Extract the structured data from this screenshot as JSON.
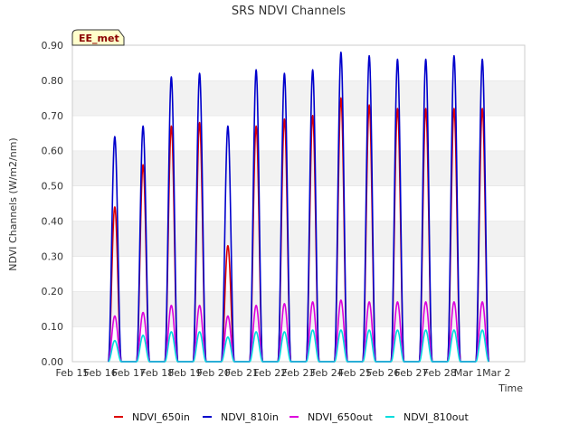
{
  "chart_data": {
    "type": "line",
    "title": "SRS NDVI Channels",
    "xlabel": "Time",
    "ylabel": "NDVI Channels (W/m2/nm)",
    "badge": "EE_met",
    "ylim": [
      0,
      0.9
    ],
    "xlim": [
      0,
      16
    ],
    "x_ticks": [
      "Feb 15",
      "Feb 16",
      "Feb 17",
      "Feb 18",
      "Feb 19",
      "Feb 20",
      "Feb 21",
      "Feb 22",
      "Feb 23",
      "Feb 24",
      "Feb 25",
      "Feb 26",
      "Feb 27",
      "Feb 28",
      "Mar 1",
      "Mar 2"
    ],
    "y_ticks": [
      "0.00",
      "0.10",
      "0.20",
      "0.30",
      "0.40",
      "0.50",
      "0.60",
      "0.70",
      "0.80",
      "0.90"
    ],
    "grid": "horizontal bands",
    "legend": "bottom",
    "daily_peak_day": [
      1,
      2,
      3,
      4,
      5,
      6,
      7,
      8,
      9,
      10,
      11,
      12,
      13,
      14
    ],
    "series": [
      {
        "name": "NDVI_650in",
        "color": "#dd0000",
        "peaks": [
          0.44,
          0.56,
          0.67,
          0.68,
          0.33,
          0.67,
          0.69,
          0.7,
          0.75,
          0.73,
          0.72,
          0.72,
          0.72,
          0.72
        ]
      },
      {
        "name": "NDVI_810in",
        "color": "#0000cc",
        "peaks": [
          0.64,
          0.67,
          0.81,
          0.82,
          0.67,
          0.83,
          0.82,
          0.83,
          0.88,
          0.87,
          0.86,
          0.86,
          0.87,
          0.86
        ]
      },
      {
        "name": "NDVI_650out",
        "color": "#dd00dd",
        "peaks": [
          0.13,
          0.14,
          0.16,
          0.16,
          0.13,
          0.16,
          0.165,
          0.17,
          0.175,
          0.17,
          0.17,
          0.17,
          0.17,
          0.17
        ]
      },
      {
        "name": "NDVI_810out",
        "color": "#00dddd",
        "peaks": [
          0.06,
          0.075,
          0.085,
          0.085,
          0.07,
          0.085,
          0.085,
          0.09,
          0.09,
          0.09,
          0.09,
          0.09,
          0.09,
          0.09
        ]
      }
    ]
  }
}
